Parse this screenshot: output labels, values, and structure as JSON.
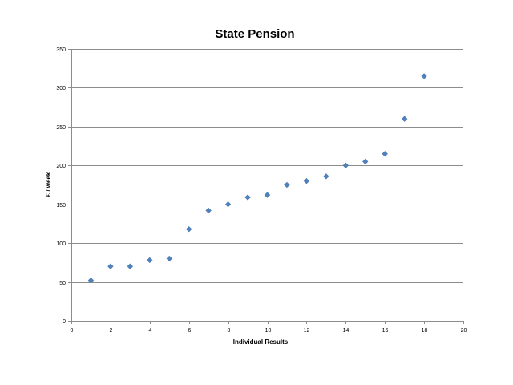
{
  "chart_data": {
    "type": "scatter",
    "title": "State Pension",
    "xlabel": "Individual Results",
    "ylabel": "£ / week",
    "xlim": [
      0,
      20
    ],
    "ylim": [
      0,
      350
    ],
    "x_ticks": [
      0,
      2,
      4,
      6,
      8,
      10,
      12,
      14,
      16,
      18,
      20
    ],
    "y_ticks": [
      0,
      50,
      100,
      150,
      200,
      250,
      300,
      350
    ],
    "grid": {
      "horizontal": true,
      "vertical": false
    },
    "marker": "diamond",
    "colors": {
      "marker": "#4f81bd",
      "gridline": "#8c8c8c",
      "axis": "#8c8c8c"
    },
    "series": [
      {
        "x": [
          1,
          2,
          3,
          4,
          5,
          6,
          7,
          8,
          9,
          10,
          11,
          12,
          13,
          14,
          15,
          16,
          17,
          18
        ],
        "y": [
          52,
          70,
          70,
          78,
          80,
          118,
          142,
          150,
          159,
          162,
          175,
          180,
          186,
          200,
          205,
          215,
          260,
          315
        ]
      }
    ]
  }
}
